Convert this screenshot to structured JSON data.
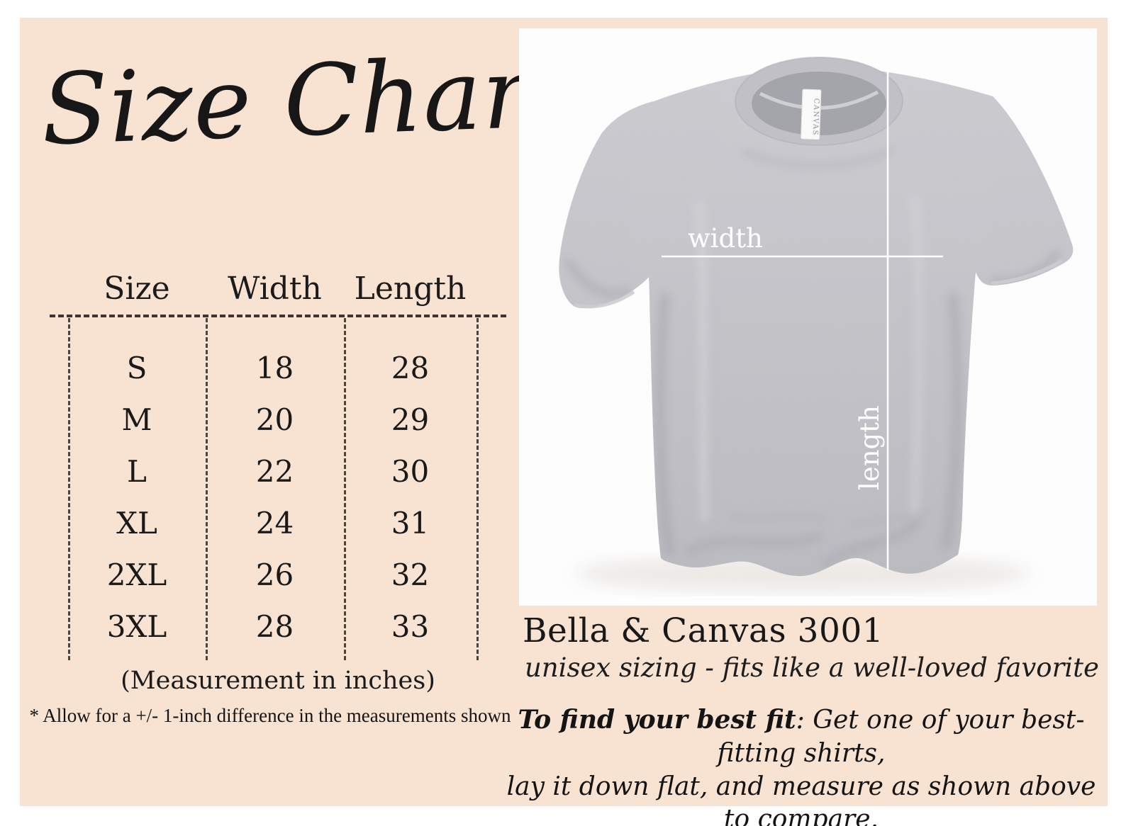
{
  "colors": {
    "card_background": "#f8e2d2",
    "photo_background": "#fdfdfe",
    "shirt_gray": "#c6c6cb",
    "measure_line": "#ffffff",
    "text": "#1c1c1c"
  },
  "title": "Size Chart",
  "size_table": {
    "columns": [
      "Size",
      "Width",
      "Length"
    ],
    "rows": [
      {
        "size": "S",
        "width": "18",
        "length": "28"
      },
      {
        "size": "M",
        "width": "20",
        "length": "29"
      },
      {
        "size": "L",
        "width": "22",
        "length": "30"
      },
      {
        "size": "XL",
        "width": "24",
        "length": "31"
      },
      {
        "size": "2XL",
        "width": "26",
        "length": "32"
      },
      {
        "size": "3XL",
        "width": "28",
        "length": "33"
      }
    ],
    "note_primary": "(Measurement in inches)",
    "note_secondary": "* Allow for a +/- 1-inch difference in the measurements shown"
  },
  "shirt": {
    "width_label": "width",
    "length_label": "length",
    "tag_text": "CANVAS"
  },
  "product": {
    "name": "Bella & Canvas 3001",
    "tagline": "unisex sizing - fits like a well-loved favorite",
    "fit_tip_lead": "To find your best fit",
    "fit_tip_rest": ": Get one of your best-fitting shirts,",
    "fit_tip_line2": "lay it down flat, and measure as shown above to compare."
  }
}
